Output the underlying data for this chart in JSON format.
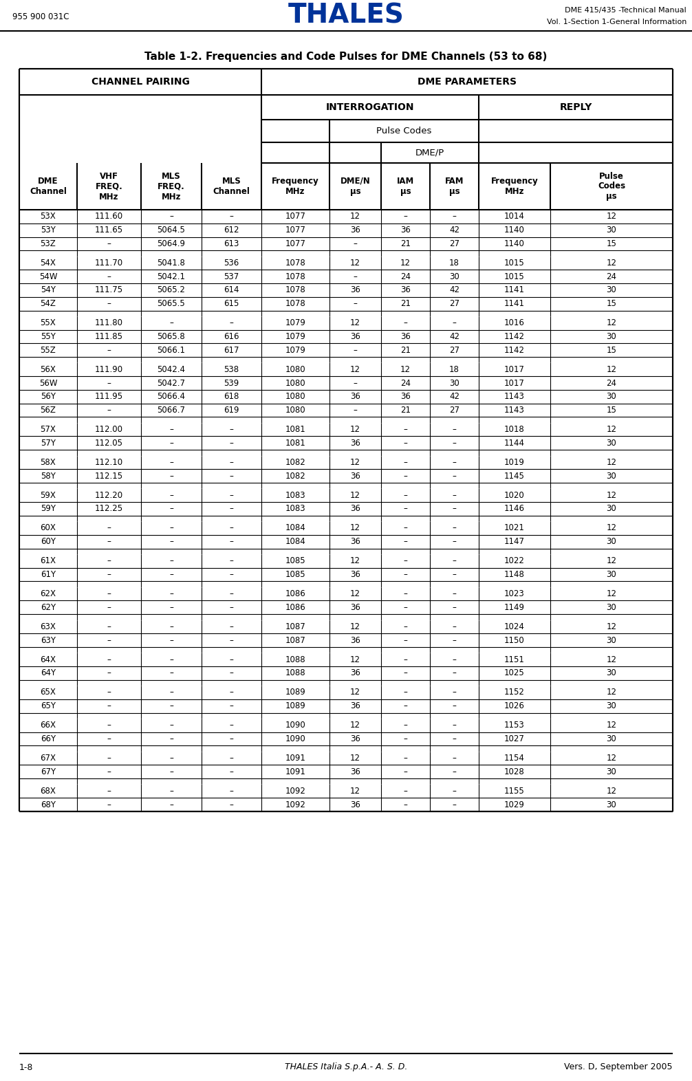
{
  "header_left": "955 900 031C",
  "header_center": "THALES",
  "header_right_line1": "DME 415/435 -Technical Manual",
  "header_right_line2": "Vol. 1-Section 1-General Information",
  "title": "Table 1-2. Frequencies and Code Pulses for DME Channels (53 to 68)",
  "footer_left": "1-8",
  "footer_center": "THALES Italia S.p.A.- A. S. D.",
  "footer_right": "Vers. D, September 2005",
  "col_labels": [
    "DME\nChannel",
    "VHF\nFREQ.\nMHz",
    "MLS\nFREQ.\nMHz",
    "MLS\nChannel",
    "Frequency\nMHz",
    "DME/N\nµs",
    "IAM\nµs",
    "FAM\nµs",
    "Frequency\nMHz",
    "Pulse\nCodes\nµs"
  ],
  "rows": [
    [
      "53X",
      "111.60",
      "–",
      "–",
      "1077",
      "12",
      "–",
      "–",
      "1014",
      "12"
    ],
    [
      "53Y",
      "111.65",
      "5064.5",
      "612",
      "1077",
      "36",
      "36",
      "42",
      "1140",
      "30"
    ],
    [
      "53Z",
      "–",
      "5064.9",
      "613",
      "1077",
      "–",
      "21",
      "27",
      "1140",
      "15"
    ],
    [
      "",
      "",
      "",
      "",
      "",
      "",
      "",
      "",
      "",
      ""
    ],
    [
      "54X",
      "111.70",
      "5041.8",
      "536",
      "1078",
      "12",
      "12",
      "18",
      "1015",
      "12"
    ],
    [
      "54W",
      "–",
      "5042.1",
      "537",
      "1078",
      "–",
      "24",
      "30",
      "1015",
      "24"
    ],
    [
      "54Y",
      "111.75",
      "5065.2",
      "614",
      "1078",
      "36",
      "36",
      "42",
      "1141",
      "30"
    ],
    [
      "54Z",
      "–",
      "5065.5",
      "615",
      "1078",
      "–",
      "21",
      "27",
      "1141",
      "15"
    ],
    [
      "",
      "",
      "",
      "",
      "",
      "",
      "",
      "",
      "",
      ""
    ],
    [
      "55X",
      "111.80",
      "–",
      "–",
      "1079",
      "12",
      "–",
      "–",
      "1016",
      "12"
    ],
    [
      "55Y",
      "111.85",
      "5065.8",
      "616",
      "1079",
      "36",
      "36",
      "42",
      "1142",
      "30"
    ],
    [
      "55Z",
      "–",
      "5066.1",
      "617",
      "1079",
      "–",
      "21",
      "27",
      "1142",
      "15"
    ],
    [
      "",
      "",
      "",
      "",
      "",
      "",
      "",
      "",
      "",
      ""
    ],
    [
      "56X",
      "111.90",
      "5042.4",
      "538",
      "1080",
      "12",
      "12",
      "18",
      "1017",
      "12"
    ],
    [
      "56W",
      "–",
      "5042.7",
      "539",
      "1080",
      "–",
      "24",
      "30",
      "1017",
      "24"
    ],
    [
      "56Y",
      "111.95",
      "5066.4",
      "618",
      "1080",
      "36",
      "36",
      "42",
      "1143",
      "30"
    ],
    [
      "56Z",
      "–",
      "5066.7",
      "619",
      "1080",
      "–",
      "21",
      "27",
      "1143",
      "15"
    ],
    [
      "",
      "",
      "",
      "",
      "",
      "",
      "",
      "",
      "",
      ""
    ],
    [
      "57X",
      "112.00",
      "–",
      "–",
      "1081",
      "12",
      "–",
      "–",
      "1018",
      "12"
    ],
    [
      "57Y",
      "112.05",
      "–",
      "–",
      "1081",
      "36",
      "–",
      "–",
      "1144",
      "30"
    ],
    [
      "",
      "",
      "",
      "",
      "",
      "",
      "",
      "",
      "",
      ""
    ],
    [
      "58X",
      "112.10",
      "–",
      "–",
      "1082",
      "12",
      "–",
      "–",
      "1019",
      "12"
    ],
    [
      "58Y",
      "112.15",
      "–",
      "–",
      "1082",
      "36",
      "–",
      "–",
      "1145",
      "30"
    ],
    [
      "",
      "",
      "",
      "",
      "",
      "",
      "",
      "",
      "",
      ""
    ],
    [
      "59X",
      "112.20",
      "–",
      "–",
      "1083",
      "12",
      "–",
      "–",
      "1020",
      "12"
    ],
    [
      "59Y",
      "112.25",
      "–",
      "–",
      "1083",
      "36",
      "–",
      "–",
      "1146",
      "30"
    ],
    [
      "",
      "",
      "",
      "",
      "",
      "",
      "",
      "",
      "",
      ""
    ],
    [
      "60X",
      "–",
      "–",
      "–",
      "1084",
      "12",
      "–",
      "–",
      "1021",
      "12"
    ],
    [
      "60Y",
      "–",
      "–",
      "–",
      "1084",
      "36",
      "–",
      "–",
      "1147",
      "30"
    ],
    [
      "",
      "",
      "",
      "",
      "",
      "",
      "",
      "",
      "",
      ""
    ],
    [
      "61X",
      "–",
      "–",
      "–",
      "1085",
      "12",
      "–",
      "–",
      "1022",
      "12"
    ],
    [
      "61Y",
      "–",
      "–",
      "–",
      "1085",
      "36",
      "–",
      "–",
      "1148",
      "30"
    ],
    [
      "",
      "",
      "",
      "",
      "",
      "",
      "",
      "",
      "",
      ""
    ],
    [
      "62X",
      "–",
      "–",
      "–",
      "1086",
      "12",
      "–",
      "–",
      "1023",
      "12"
    ],
    [
      "62Y",
      "–",
      "–",
      "–",
      "1086",
      "36",
      "–",
      "–",
      "1149",
      "30"
    ],
    [
      "",
      "",
      "",
      "",
      "",
      "",
      "",
      "",
      "",
      ""
    ],
    [
      "63X",
      "–",
      "–",
      "–",
      "1087",
      "12",
      "–",
      "–",
      "1024",
      "12"
    ],
    [
      "63Y",
      "–",
      "–",
      "–",
      "1087",
      "36",
      "–",
      "–",
      "1150",
      "30"
    ],
    [
      "",
      "",
      "",
      "",
      "",
      "",
      "",
      "",
      "",
      ""
    ],
    [
      "64X",
      "–",
      "–",
      "–",
      "1088",
      "12",
      "–",
      "–",
      "1151",
      "12"
    ],
    [
      "64Y",
      "–",
      "–",
      "–",
      "1088",
      "36",
      "–",
      "–",
      "1025",
      "30"
    ],
    [
      "",
      "",
      "",
      "",
      "",
      "",
      "",
      "",
      "",
      ""
    ],
    [
      "65X",
      "–",
      "–",
      "–",
      "1089",
      "12",
      "–",
      "–",
      "1152",
      "12"
    ],
    [
      "65Y",
      "–",
      "–",
      "–",
      "1089",
      "36",
      "–",
      "–",
      "1026",
      "30"
    ],
    [
      "",
      "",
      "",
      "",
      "",
      "",
      "",
      "",
      "",
      ""
    ],
    [
      "66X",
      "–",
      "–",
      "–",
      "1090",
      "12",
      "–",
      "–",
      "1153",
      "12"
    ],
    [
      "66Y",
      "–",
      "–",
      "–",
      "1090",
      "36",
      "–",
      "–",
      "1027",
      "30"
    ],
    [
      "",
      "",
      "",
      "",
      "",
      "",
      "",
      "",
      "",
      ""
    ],
    [
      "67X",
      "–",
      "–",
      "–",
      "1091",
      "12",
      "–",
      "–",
      "1154",
      "12"
    ],
    [
      "67Y",
      "–",
      "–",
      "–",
      "1091",
      "36",
      "–",
      "–",
      "1028",
      "30"
    ],
    [
      "",
      "",
      "",
      "",
      "",
      "",
      "",
      "",
      "",
      ""
    ],
    [
      "68X",
      "–",
      "–",
      "–",
      "1092",
      "12",
      "–",
      "–",
      "1155",
      "12"
    ],
    [
      "68Y",
      "–",
      "–",
      "–",
      "1092",
      "36",
      "–",
      "–",
      "1029",
      "30"
    ]
  ],
  "thales_color": "#003399",
  "bg_color": "#ffffff"
}
